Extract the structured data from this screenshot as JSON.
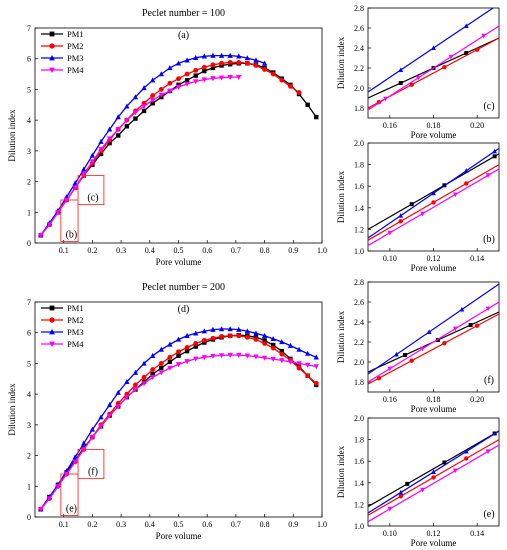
{
  "colors": {
    "PM1": "#000000",
    "PM2": "#ff0000",
    "PM3": "#0000ff",
    "PM4": "#ff00ff",
    "zoom_box": "#ff3030"
  },
  "chart_data": [
    {
      "id": "a",
      "type": "line",
      "title": "Peclet number = 100",
      "panel_label": "(a)",
      "xlabel": "Pore volume",
      "ylabel": "Dilution index",
      "xlim": [
        0,
        1.0
      ],
      "ylim": [
        0,
        7
      ],
      "xticks": [
        0.1,
        0.2,
        0.3,
        0.4,
        0.5,
        0.6,
        0.7,
        0.8,
        0.9,
        1.0
      ],
      "yticks": [
        0,
        1,
        2,
        3,
        4,
        5,
        6,
        7
      ],
      "legend": "top-left",
      "zoom_boxes": [
        {
          "label": "(b)",
          "x": [
            0.09,
            0.15
          ],
          "y": [
            0.05,
            1.4
          ]
        },
        {
          "label": "(c)",
          "x": [
            0.15,
            0.24
          ],
          "y": [
            1.25,
            2.2
          ]
        }
      ],
      "series": [
        {
          "name": "PM1",
          "marker": "square",
          "x": [
            0.02,
            0.05,
            0.08,
            0.11,
            0.14,
            0.17,
            0.2,
            0.23,
            0.26,
            0.29,
            0.32,
            0.35,
            0.38,
            0.41,
            0.44,
            0.47,
            0.5,
            0.53,
            0.56,
            0.59,
            0.62,
            0.65,
            0.68,
            0.71,
            0.74,
            0.77,
            0.8,
            0.83,
            0.86,
            0.89,
            0.92,
            0.95,
            0.98
          ],
          "y": [
            0.25,
            0.6,
            1.0,
            1.4,
            1.8,
            2.2,
            2.55,
            2.9,
            3.25,
            3.5,
            3.8,
            4.05,
            4.3,
            4.55,
            4.75,
            4.95,
            5.15,
            5.3,
            5.45,
            5.6,
            5.7,
            5.78,
            5.82,
            5.85,
            5.85,
            5.8,
            5.7,
            5.55,
            5.35,
            5.15,
            4.85,
            4.5,
            4.1
          ]
        },
        {
          "name": "PM2",
          "marker": "circle",
          "x": [
            0.02,
            0.05,
            0.08,
            0.11,
            0.14,
            0.17,
            0.2,
            0.23,
            0.26,
            0.29,
            0.32,
            0.35,
            0.38,
            0.41,
            0.44,
            0.47,
            0.5,
            0.53,
            0.56,
            0.59,
            0.62,
            0.65,
            0.68,
            0.71,
            0.74,
            0.77,
            0.8,
            0.83,
            0.86,
            0.89,
            0.92
          ],
          "y": [
            0.25,
            0.6,
            1.0,
            1.4,
            1.8,
            2.2,
            2.6,
            3.0,
            3.35,
            3.7,
            4.0,
            4.3,
            4.55,
            4.8,
            5.0,
            5.2,
            5.35,
            5.5,
            5.62,
            5.72,
            5.8,
            5.85,
            5.88,
            5.88,
            5.85,
            5.78,
            5.65,
            5.5,
            5.3,
            5.1,
            4.9
          ]
        },
        {
          "name": "PM3",
          "marker": "triangle",
          "x": [
            0.02,
            0.05,
            0.08,
            0.11,
            0.14,
            0.17,
            0.2,
            0.23,
            0.26,
            0.29,
            0.32,
            0.35,
            0.38,
            0.41,
            0.44,
            0.47,
            0.5,
            0.53,
            0.56,
            0.59,
            0.62,
            0.65,
            0.68,
            0.71,
            0.74,
            0.77,
            0.8
          ],
          "y": [
            0.25,
            0.65,
            1.05,
            1.5,
            1.95,
            2.4,
            2.85,
            3.3,
            3.7,
            4.1,
            4.45,
            4.75,
            5.05,
            5.3,
            5.5,
            5.7,
            5.85,
            5.95,
            6.03,
            6.08,
            6.1,
            6.1,
            6.1,
            6.08,
            6.02,
            5.95,
            5.85
          ]
        },
        {
          "name": "PM4",
          "marker": "triangle-down",
          "x": [
            0.02,
            0.05,
            0.08,
            0.11,
            0.14,
            0.17,
            0.2,
            0.23,
            0.26,
            0.29,
            0.32,
            0.35,
            0.38,
            0.41,
            0.44,
            0.47,
            0.5,
            0.53,
            0.56,
            0.59,
            0.62,
            0.65,
            0.68,
            0.71
          ],
          "y": [
            0.25,
            0.6,
            1.0,
            1.4,
            1.8,
            2.25,
            2.65,
            3.05,
            3.4,
            3.7,
            4.0,
            4.25,
            4.45,
            4.65,
            4.82,
            4.95,
            5.08,
            5.18,
            5.26,
            5.32,
            5.36,
            5.38,
            5.4,
            5.4
          ]
        }
      ]
    },
    {
      "id": "d",
      "type": "line",
      "title": "Peclet number = 200",
      "panel_label": "(d)",
      "xlabel": "Pore volume",
      "ylabel": "Dilution index",
      "xlim": [
        0,
        1.0
      ],
      "ylim": [
        0,
        7
      ],
      "xticks": [
        0.1,
        0.2,
        0.3,
        0.4,
        0.5,
        0.6,
        0.7,
        0.8,
        0.9,
        1.0
      ],
      "yticks": [
        0,
        1,
        2,
        3,
        4,
        5,
        6,
        7
      ],
      "legend": "top-left",
      "zoom_boxes": [
        {
          "label": "(e)",
          "x": [
            0.09,
            0.15
          ],
          "y": [
            0.05,
            1.4
          ]
        },
        {
          "label": "(f)",
          "x": [
            0.15,
            0.24
          ],
          "y": [
            1.25,
            2.2
          ]
        }
      ],
      "series": [
        {
          "name": "PM1",
          "marker": "square",
          "x": [
            0.02,
            0.05,
            0.08,
            0.11,
            0.14,
            0.17,
            0.2,
            0.23,
            0.26,
            0.29,
            0.32,
            0.35,
            0.38,
            0.41,
            0.44,
            0.47,
            0.5,
            0.53,
            0.56,
            0.59,
            0.62,
            0.65,
            0.68,
            0.71,
            0.74,
            0.77,
            0.8,
            0.83,
            0.86,
            0.89,
            0.92,
            0.95,
            0.98
          ],
          "y": [
            0.25,
            0.65,
            1.05,
            1.45,
            1.85,
            2.25,
            2.6,
            2.95,
            3.3,
            3.6,
            3.9,
            4.15,
            4.4,
            4.65,
            4.85,
            5.05,
            5.25,
            5.4,
            5.55,
            5.68,
            5.78,
            5.85,
            5.9,
            5.92,
            5.9,
            5.85,
            5.75,
            5.6,
            5.4,
            5.15,
            4.9,
            4.6,
            4.3
          ]
        },
        {
          "name": "PM2",
          "marker": "circle",
          "x": [
            0.02,
            0.05,
            0.08,
            0.11,
            0.14,
            0.17,
            0.2,
            0.23,
            0.26,
            0.29,
            0.32,
            0.35,
            0.38,
            0.41,
            0.44,
            0.47,
            0.5,
            0.53,
            0.56,
            0.59,
            0.62,
            0.65,
            0.68,
            0.71,
            0.74,
            0.77,
            0.8,
            0.83,
            0.86,
            0.89,
            0.92,
            0.95,
            0.98
          ],
          "y": [
            0.25,
            0.6,
            1.0,
            1.4,
            1.8,
            2.2,
            2.6,
            3.0,
            3.35,
            3.7,
            4.0,
            4.3,
            4.55,
            4.8,
            5.0,
            5.2,
            5.38,
            5.52,
            5.65,
            5.75,
            5.82,
            5.88,
            5.9,
            5.9,
            5.85,
            5.78,
            5.65,
            5.5,
            5.3,
            5.1,
            4.85,
            4.6,
            4.35
          ]
        },
        {
          "name": "PM3",
          "marker": "triangle",
          "x": [
            0.02,
            0.05,
            0.08,
            0.11,
            0.14,
            0.17,
            0.2,
            0.23,
            0.26,
            0.29,
            0.32,
            0.35,
            0.38,
            0.41,
            0.44,
            0.47,
            0.5,
            0.53,
            0.56,
            0.59,
            0.62,
            0.65,
            0.68,
            0.71,
            0.74,
            0.77,
            0.8,
            0.83,
            0.86,
            0.89,
            0.92,
            0.95,
            0.98
          ],
          "y": [
            0.25,
            0.65,
            1.05,
            1.5,
            1.95,
            2.4,
            2.85,
            3.25,
            3.65,
            4.05,
            4.4,
            4.7,
            5.0,
            5.25,
            5.45,
            5.62,
            5.78,
            5.9,
            5.98,
            6.05,
            6.1,
            6.12,
            6.12,
            6.1,
            6.05,
            5.98,
            5.9,
            5.8,
            5.7,
            5.58,
            5.45,
            5.32,
            5.2
          ]
        },
        {
          "name": "PM4",
          "marker": "triangle-down",
          "x": [
            0.02,
            0.05,
            0.08,
            0.11,
            0.14,
            0.17,
            0.2,
            0.23,
            0.26,
            0.29,
            0.32,
            0.35,
            0.38,
            0.41,
            0.44,
            0.47,
            0.5,
            0.53,
            0.56,
            0.59,
            0.62,
            0.65,
            0.68,
            0.71,
            0.74,
            0.77,
            0.8,
            0.83,
            0.86,
            0.89,
            0.92,
            0.95,
            0.98
          ],
          "y": [
            0.25,
            0.6,
            1.0,
            1.4,
            1.8,
            2.2,
            2.6,
            2.95,
            3.3,
            3.6,
            3.9,
            4.15,
            4.35,
            4.55,
            4.7,
            4.85,
            4.97,
            5.07,
            5.15,
            5.2,
            5.24,
            5.26,
            5.27,
            5.27,
            5.25,
            5.22,
            5.18,
            5.14,
            5.1,
            5.05,
            5.0,
            4.95,
            4.9
          ]
        }
      ]
    },
    {
      "id": "c",
      "type": "line",
      "panel_label": "(c)",
      "xlabel": "Pore volume",
      "ylabel": "Dilution index",
      "xlim": [
        0.15,
        0.21
      ],
      "ylim": [
        1.7,
        2.8
      ],
      "xticks": [
        0.16,
        0.18,
        0.2
      ],
      "yticks": [
        1.8,
        2.0,
        2.2,
        2.4,
        2.6,
        2.8
      ],
      "series": [
        {
          "name": "PM1",
          "x": [
            0.15,
            0.21
          ],
          "y": [
            1.9,
            2.5
          ],
          "marker_x": [
            0.165,
            0.18,
            0.195
          ]
        },
        {
          "name": "PM2",
          "x": [
            0.15,
            0.21
          ],
          "y": [
            1.8,
            2.5
          ],
          "marker_x": [
            0.155,
            0.17,
            0.185,
            0.2
          ]
        },
        {
          "name": "PM3",
          "x": [
            0.15,
            0.21
          ],
          "y": [
            1.96,
            2.84
          ],
          "marker_x": [
            0.165,
            0.18,
            0.195
          ]
        },
        {
          "name": "PM4",
          "x": [
            0.15,
            0.21
          ],
          "y": [
            1.78,
            2.62
          ],
          "marker_x": [
            0.158,
            0.173,
            0.188,
            0.203
          ]
        }
      ]
    },
    {
      "id": "b",
      "type": "line",
      "panel_label": "(b)",
      "xlabel": "Pore volume",
      "ylabel": "Dilution index",
      "xlim": [
        0.09,
        0.15
      ],
      "ylim": [
        1.0,
        2.0
      ],
      "xticks": [
        0.1,
        0.12,
        0.14
      ],
      "yticks": [
        1.0,
        1.2,
        1.4,
        1.6,
        1.8,
        2.0
      ],
      "series": [
        {
          "name": "PM1",
          "x": [
            0.09,
            0.15
          ],
          "y": [
            1.2,
            1.9
          ],
          "marker_x": [
            0.11,
            0.125,
            0.148
          ]
        },
        {
          "name": "PM2",
          "x": [
            0.09,
            0.15
          ],
          "y": [
            1.1,
            1.8
          ],
          "marker_x": [
            0.105,
            0.12,
            0.135
          ]
        },
        {
          "name": "PM3",
          "x": [
            0.09,
            0.15
          ],
          "y": [
            1.12,
            1.95
          ],
          "marker_x": [
            0.105,
            0.12,
            0.135,
            0.148
          ]
        },
        {
          "name": "PM4",
          "x": [
            0.09,
            0.15
          ],
          "y": [
            1.05,
            1.76
          ],
          "marker_x": [
            0.1,
            0.115,
            0.13,
            0.145
          ]
        }
      ]
    },
    {
      "id": "f",
      "type": "line",
      "panel_label": "(f)",
      "xlabel": "Pore volume",
      "ylabel": "Dilution index",
      "xlim": [
        0.15,
        0.21
      ],
      "ylim": [
        1.7,
        2.8
      ],
      "xticks": [
        0.16,
        0.18,
        0.2
      ],
      "yticks": [
        1.8,
        2.0,
        2.2,
        2.4,
        2.6,
        2.8
      ],
      "series": [
        {
          "name": "PM1",
          "x": [
            0.15,
            0.21
          ],
          "y": [
            1.9,
            2.5
          ],
          "marker_x": [
            0.167,
            0.182,
            0.197
          ]
        },
        {
          "name": "PM2",
          "x": [
            0.15,
            0.21
          ],
          "y": [
            1.78,
            2.48
          ],
          "marker_x": [
            0.155,
            0.17,
            0.185,
            0.2
          ]
        },
        {
          "name": "PM3",
          "x": [
            0.15,
            0.21
          ],
          "y": [
            1.88,
            2.78
          ],
          "marker_x": [
            0.163,
            0.178,
            0.193
          ]
        },
        {
          "name": "PM4",
          "x": [
            0.15,
            0.21
          ],
          "y": [
            1.8,
            2.6
          ],
          "marker_x": [
            0.16,
            0.175,
            0.19,
            0.205
          ]
        }
      ]
    },
    {
      "id": "e",
      "type": "line",
      "panel_label": "(e)",
      "xlabel": "Pore volume",
      "ylabel": "Dilution index",
      "xlim": [
        0.09,
        0.15
      ],
      "ylim": [
        1.0,
        2.0
      ],
      "xticks": [
        0.1,
        0.12,
        0.14
      ],
      "yticks": [
        1.0,
        1.2,
        1.4,
        1.6,
        1.8,
        2.0
      ],
      "series": [
        {
          "name": "PM1",
          "x": [
            0.09,
            0.15
          ],
          "y": [
            1.18,
            1.88
          ],
          "marker_x": [
            0.108,
            0.125,
            0.148
          ]
        },
        {
          "name": "PM2",
          "x": [
            0.09,
            0.15
          ],
          "y": [
            1.1,
            1.8
          ],
          "marker_x": [
            0.105,
            0.12,
            0.135
          ]
        },
        {
          "name": "PM3",
          "x": [
            0.09,
            0.15
          ],
          "y": [
            1.12,
            1.88
          ],
          "marker_x": [
            0.105,
            0.12,
            0.135
          ]
        },
        {
          "name": "PM4",
          "x": [
            0.09,
            0.15
          ],
          "y": [
            1.04,
            1.75
          ],
          "marker_x": [
            0.1,
            0.115,
            0.13,
            0.145
          ]
        }
      ]
    }
  ]
}
